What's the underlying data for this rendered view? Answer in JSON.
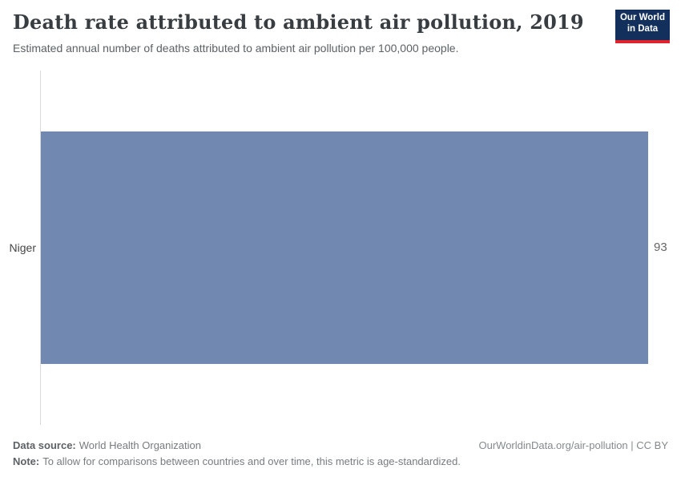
{
  "header": {
    "title": "Death rate attributed to ambient air pollution, 2019",
    "subtitle": "Estimated annual number of deaths attributed to ambient air pollution per 100,000 people.",
    "logo": {
      "line1": "Our World",
      "line2": "in Data",
      "bg_color": "#12305b",
      "accent_color": "#e0232e"
    }
  },
  "chart_data": {
    "type": "bar",
    "orientation": "horizontal",
    "title": "Death rate attributed to ambient air pollution, 2019",
    "subtitle": "Estimated annual number of deaths attributed to ambient air pollution per 100,000 people.",
    "categories": [
      "Niger"
    ],
    "values": [
      93
    ],
    "value_labels": [
      "93"
    ],
    "bar_color": "#7189b0",
    "xlim": [
      0,
      93
    ],
    "grid": false,
    "legend": "none",
    "year": "2019"
  },
  "chart": {
    "entity_label": "Niger",
    "value_label": "93"
  },
  "footer": {
    "data_source_label": "Data source:",
    "data_source_value": "World Health Organization",
    "license": "OurWorldinData.org/air-pollution | CC BY",
    "note_label": "Note:",
    "note_value": "To allow for comparisons between countries and over time, this metric is age-standardized."
  }
}
